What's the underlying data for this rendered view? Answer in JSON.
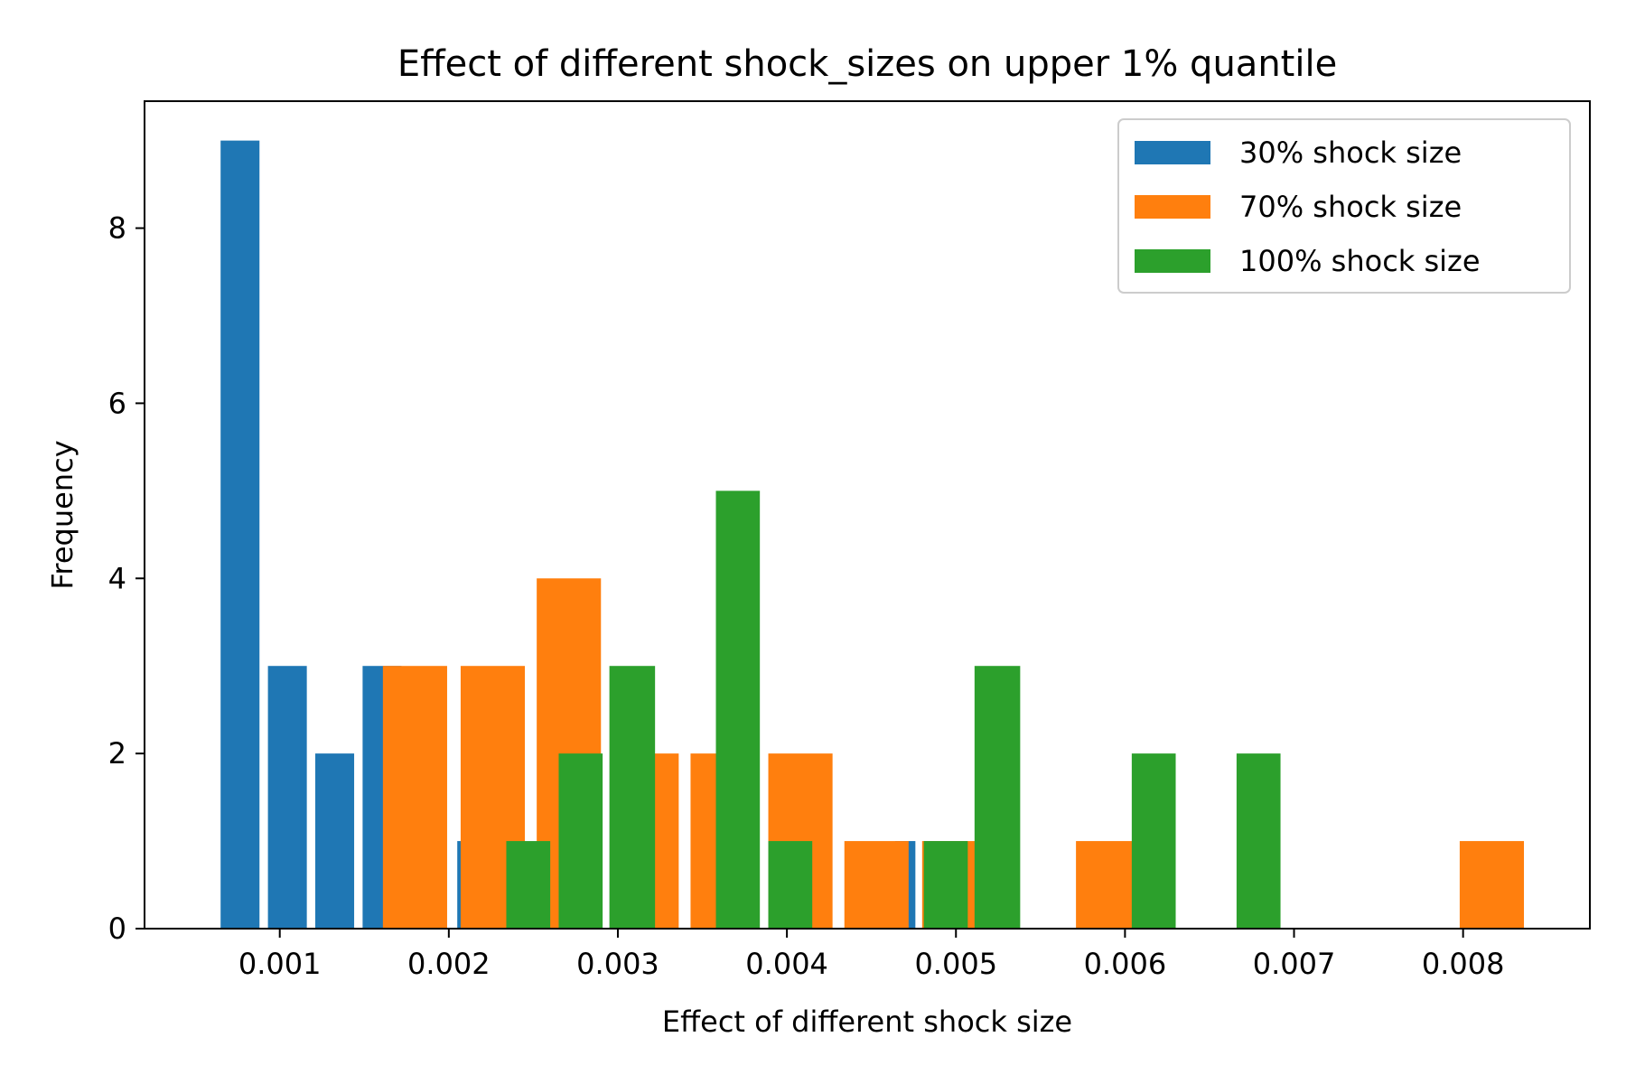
{
  "chart_data": {
    "type": "bar",
    "title": "Effect of different shock_sizes on upper 1% quantile",
    "xlabel": "Effect of different shock size",
    "ylabel": "Frequency",
    "xlim": [
      0.0002,
      0.00875
    ],
    "ylim": [
      0,
      9.45
    ],
    "xticks": [
      {
        "value": 0.001,
        "label": "0.001"
      },
      {
        "value": 0.002,
        "label": "0.002"
      },
      {
        "value": 0.003,
        "label": "0.003"
      },
      {
        "value": 0.004,
        "label": "0.004"
      },
      {
        "value": 0.005,
        "label": "0.005"
      },
      {
        "value": 0.006,
        "label": "0.006"
      },
      {
        "value": 0.007,
        "label": "0.007"
      },
      {
        "value": 0.008,
        "label": "0.008"
      }
    ],
    "yticks": [
      {
        "value": 0,
        "label": "0"
      },
      {
        "value": 2,
        "label": "2"
      },
      {
        "value": 4,
        "label": "4"
      },
      {
        "value": 6,
        "label": "6"
      },
      {
        "value": 8,
        "label": "8"
      }
    ],
    "grid": false,
    "legend_position": "top-right",
    "series": [
      {
        "name": "30% shock size",
        "color": "#1f77b4",
        "bars": [
          {
            "x0": 0.00065,
            "x1": 0.00088,
            "count": 9
          },
          {
            "x0": 0.00093,
            "x1": 0.00116,
            "count": 3
          },
          {
            "x0": 0.00121,
            "x1": 0.00144,
            "count": 2
          },
          {
            "x0": 0.00149,
            "x1": 0.00172,
            "count": 3
          },
          {
            "x0": 0.00177,
            "x1": 0.002,
            "count": 0
          },
          {
            "x0": 0.00205,
            "x1": 0.00228,
            "count": 1
          },
          {
            "x0": 0.00464,
            "x1": 0.00476,
            "count": 1
          }
        ]
      },
      {
        "name": "70% shock size",
        "color": "#ff7f0e",
        "bars": [
          {
            "x0": 0.00161,
            "x1": 0.00199,
            "count": 3
          },
          {
            "x0": 0.00207,
            "x1": 0.00245,
            "count": 3
          },
          {
            "x0": 0.00252,
            "x1": 0.0029,
            "count": 4
          },
          {
            "x0": 0.00298,
            "x1": 0.00336,
            "count": 2
          },
          {
            "x0": 0.00343,
            "x1": 0.00381,
            "count": 2
          },
          {
            "x0": 0.00389,
            "x1": 0.00427,
            "count": 2
          },
          {
            "x0": 0.00434,
            "x1": 0.00472,
            "count": 1
          },
          {
            "x0": 0.0048,
            "x1": 0.00518,
            "count": 1
          },
          {
            "x0": 0.00571,
            "x1": 0.00606,
            "count": 1
          },
          {
            "x0": 0.00798,
            "x1": 0.00836,
            "count": 1
          }
        ]
      },
      {
        "name": "100% shock size",
        "color": "#2ca02c",
        "bars": [
          {
            "x0": 0.00234,
            "x1": 0.0026,
            "count": 1
          },
          {
            "x0": 0.00265,
            "x1": 0.00291,
            "count": 2
          },
          {
            "x0": 0.00295,
            "x1": 0.00322,
            "count": 3
          },
          {
            "x0": 0.00358,
            "x1": 0.00384,
            "count": 5
          },
          {
            "x0": 0.00389,
            "x1": 0.00415,
            "count": 1
          },
          {
            "x0": 0.00481,
            "x1": 0.00507,
            "count": 1
          },
          {
            "x0": 0.00511,
            "x1": 0.00538,
            "count": 3
          },
          {
            "x0": 0.00604,
            "x1": 0.0063,
            "count": 2
          },
          {
            "x0": 0.00666,
            "x1": 0.00692,
            "count": 2
          }
        ]
      }
    ]
  }
}
